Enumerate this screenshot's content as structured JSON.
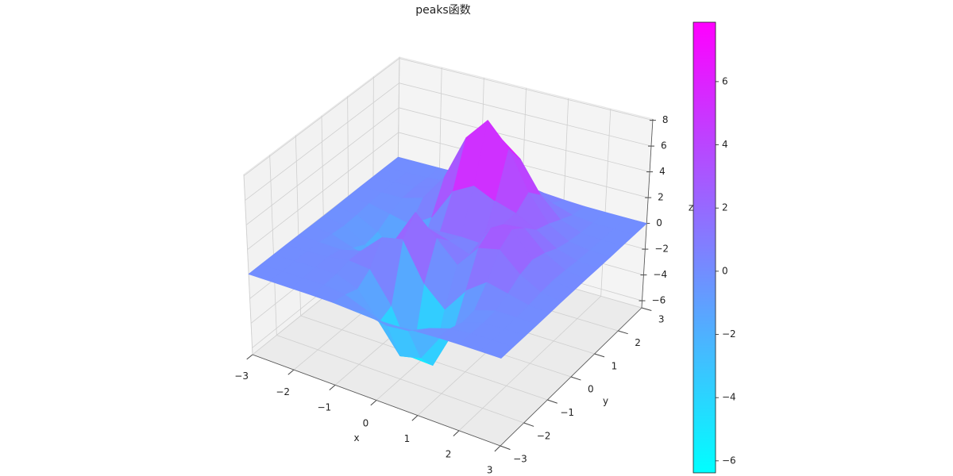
{
  "chart_data": {
    "type": "surface",
    "title": "peaks函数",
    "x_label": "x",
    "y_label": "y",
    "z_label": "z",
    "x": [
      -3,
      -2.5,
      -2,
      -1.5,
      -1,
      -0.5,
      0,
      0.5,
      1,
      1.5,
      2,
      2.5,
      3
    ],
    "y": [
      -3,
      -2.5,
      -2,
      -1.5,
      -1,
      -0.5,
      0,
      0.5,
      1,
      1.5,
      2,
      2.5,
      3
    ],
    "z": [
      [
        0,
        0,
        0,
        0,
        -0.03,
        -0.14,
        -0.25,
        -0.22,
        -0.11,
        -0.03,
        0,
        0,
        0
      ],
      [
        0,
        0,
        0.01,
        0,
        -0.23,
        -0.91,
        -1.57,
        -1.41,
        -0.69,
        -0.18,
        -0.03,
        0,
        0
      ],
      [
        0,
        0.01,
        0.05,
        0.05,
        -0.59,
        -2.63,
        -4.75,
        -4.34,
        -2.1,
        -0.53,
        -0.06,
        0,
        0
      ],
      [
        0,
        0.01,
        0.08,
        0.33,
        0.15,
        -2.19,
        -5.68,
        -5.76,
        -2.63,
        -0.44,
        0.04,
        0.03,
        0
      ],
      [
        -0.01,
        -0.06,
        -0.13,
        0.3,
        1.86,
        2.22,
        -0.72,
        -2.22,
        -0.27,
        0.88,
        0.5,
        0.11,
        0.01
      ],
      [
        -0.03,
        -0.2,
        -0.8,
        -1.21,
        0.8,
        3.55,
        2.0,
        0.39,
        2.2,
        2.56,
        1.12,
        0.24,
        0.03
      ],
      [
        -0.04,
        -0.3,
        -1.33,
        -2.77,
        -1.65,
        1.48,
        0.98,
        0.37,
        2.94,
        3.27,
        1.41,
        0.3,
        0.03
      ],
      [
        -0.03,
        -0.25,
        -1.12,
        -2.49,
        -2.0,
        0.39,
        0.46,
        0.38,
        2.38,
        2.56,
        1.09,
        0.23,
        0.03
      ],
      [
        -0.01,
        -0.11,
        -0.48,
        -0.86,
        0.23,
        2.79,
        3.69,
        2.93,
        2.43,
        1.58,
        0.58,
        0.11,
        0.01
      ],
      [
        0,
        -0.02,
        -0.01,
        0.48,
        2.61,
        6.2,
        8.0,
        6.25,
        3.25,
        1.19,
        0.29,
        0.05,
        0
      ],
      [
        0,
        0.01,
        0.08,
        0.55,
        2.1,
        4.55,
        5.85,
        4.56,
        2.21,
        0.68,
        0.13,
        0.02,
        0
      ],
      [
        0,
        0,
        0.03,
        0.19,
        0.69,
        1.47,
        1.88,
        1.47,
        0.7,
        0.2,
        0.04,
        0,
        0
      ],
      [
        0,
        0,
        0.01,
        0.03,
        0.11,
        0.23,
        0.3,
        0.23,
        0.11,
        0.03,
        0.01,
        0,
        0
      ]
    ],
    "xlim": [
      -3,
      3
    ],
    "ylim": [
      -3,
      3
    ],
    "zlim": [
      -6.55,
      8.1
    ],
    "xticks": [
      {
        "value": -3,
        "label": "−3"
      },
      {
        "value": -2,
        "label": "−2"
      },
      {
        "value": -1,
        "label": "−1"
      },
      0,
      1,
      2,
      3
    ],
    "yticks": [
      {
        "value": -3,
        "label": "−3"
      },
      {
        "value": -2,
        "label": "−2"
      },
      {
        "value": -1,
        "label": "−1"
      },
      0,
      1,
      2,
      3
    ],
    "zticks": [
      {
        "value": -6,
        "label": "−6"
      },
      {
        "value": -4,
        "label": "−4"
      },
      {
        "value": -2,
        "label": "−2"
      },
      0,
      2,
      4,
      6,
      8
    ],
    "colormap": [
      "#00ffff",
      "#ff00ff"
    ],
    "clim": [
      -6.38,
      7.88
    ],
    "colorbar_ticks": [
      {
        "value": -6,
        "label": "−6"
      },
      {
        "value": -4,
        "label": "−4"
      },
      {
        "value": -2,
        "label": "−2"
      },
      0,
      2,
      4,
      6
    ],
    "grid": true
  }
}
